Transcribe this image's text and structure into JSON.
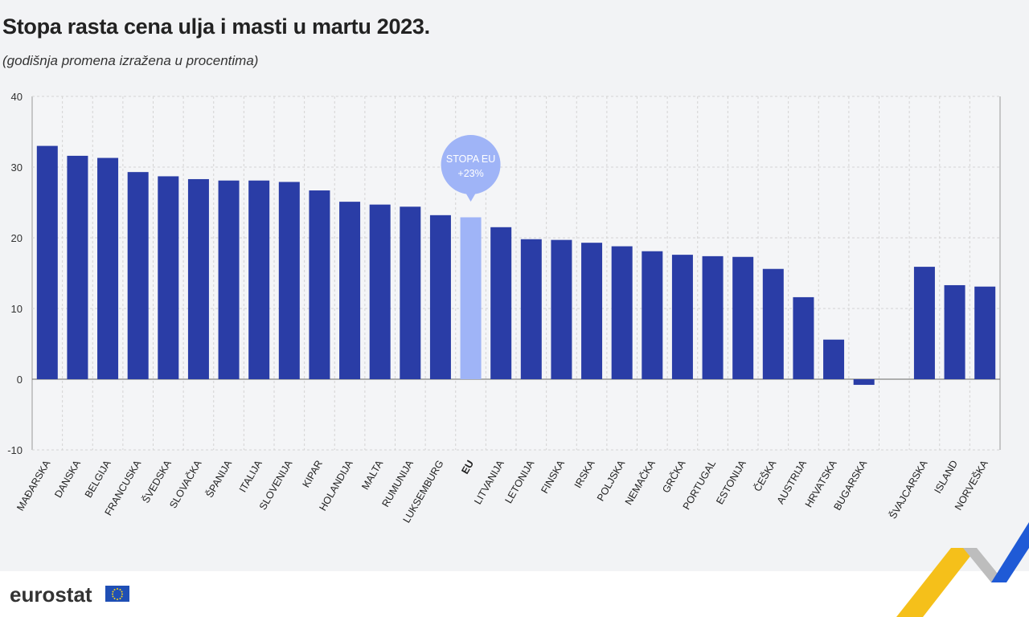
{
  "title": "Stopa rasta cena ulja i masti u martu 2023.",
  "subtitle": "(godišnja promena izražena u procentima)",
  "logo": {
    "text": "eurostat",
    "flag_icon": "eu-flag-icon"
  },
  "colors": {
    "bar": "#2a3da6",
    "eu_bar": "#9fb4f7",
    "callout": "#9fb4f7",
    "grid": "#cccccc",
    "background": "#f2f3f5",
    "deco_yellow": "#f5c01a",
    "deco_blue": "#1f5ad6",
    "deco_grey": "#bdbdbd"
  },
  "chart_data": {
    "type": "bar",
    "categories": [
      "MAĐARSKA",
      "DANSKA",
      "BELGIJA",
      "FRANCUSKA",
      "ŠVEDSKA",
      "SLOVAČKA",
      "ŠPANIJA",
      "ITALIJA",
      "SLOVENIJA",
      "KIPAR",
      "HOLANDIJA",
      "MALTA",
      "RUMUNIJA",
      "LUKSEMBURG",
      "EU",
      "LITVANIJA",
      "LETONIJA",
      "FINSKA",
      "IRSKA",
      "POLJSKA",
      "NEMAČKA",
      "GRČKA",
      "PORTUGAL",
      "ESTONIJA",
      "ČEŠKA",
      "AUSTRIJA",
      "HRVATSKA",
      "BUGARSKA",
      "",
      "ŠVAJCARSKA",
      "ISLAND",
      "NORVEŠKA"
    ],
    "values": [
      33.0,
      31.6,
      31.3,
      29.3,
      28.7,
      28.3,
      28.1,
      28.1,
      27.9,
      26.7,
      25.1,
      24.7,
      24.4,
      23.2,
      22.9,
      21.5,
      19.8,
      19.7,
      19.3,
      18.8,
      18.1,
      17.6,
      17.4,
      17.3,
      15.6,
      11.6,
      5.6,
      -0.8,
      null,
      15.9,
      13.3,
      13.1
    ],
    "highlight": "EU",
    "ylim": [
      -10,
      40
    ],
    "yticks": [
      -10,
      0,
      10,
      20,
      30,
      40
    ],
    "grid": true,
    "callout": {
      "line1": "STOPA EU",
      "line2": "+23%",
      "category": "EU"
    }
  }
}
